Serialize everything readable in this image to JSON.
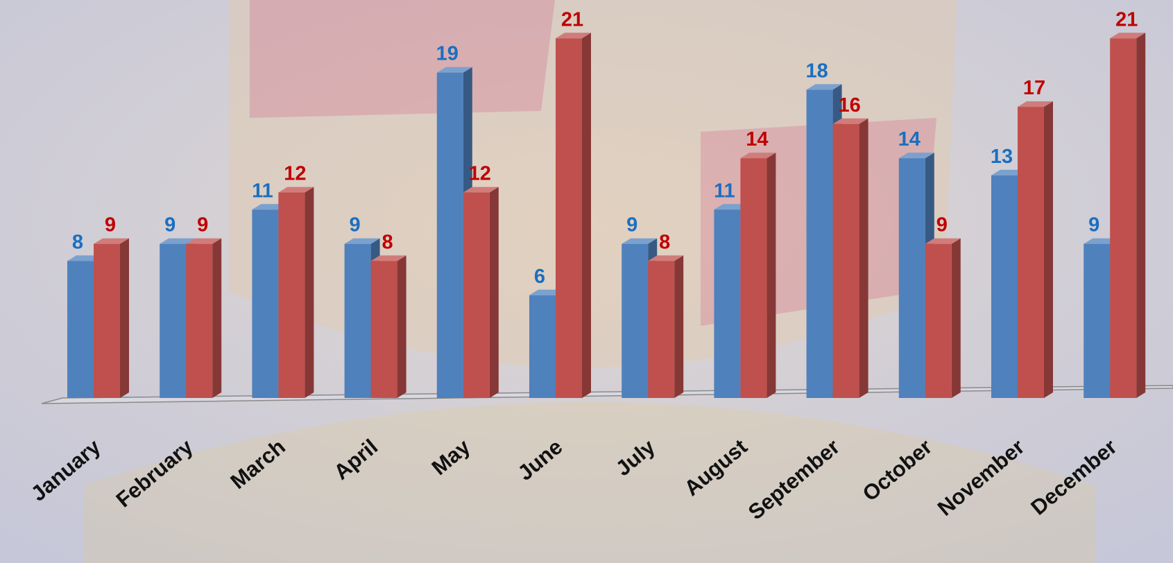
{
  "chart_data": {
    "type": "bar3d",
    "categories": [
      "January",
      "February",
      "March",
      "April",
      "May",
      "June",
      "July",
      "August",
      "September",
      "October",
      "November",
      "December"
    ],
    "series": [
      {
        "color": "#4f81bd",
        "label_color": "#1a6fc0",
        "values": [
          8,
          9,
          11,
          9,
          19,
          6,
          9,
          11,
          18,
          14,
          13,
          9
        ]
      },
      {
        "color": "#c0504d",
        "label_color": "#c00000",
        "values": [
          9,
          9,
          12,
          8,
          12,
          21,
          8,
          14,
          16,
          9,
          17,
          21
        ]
      }
    ]
  }
}
